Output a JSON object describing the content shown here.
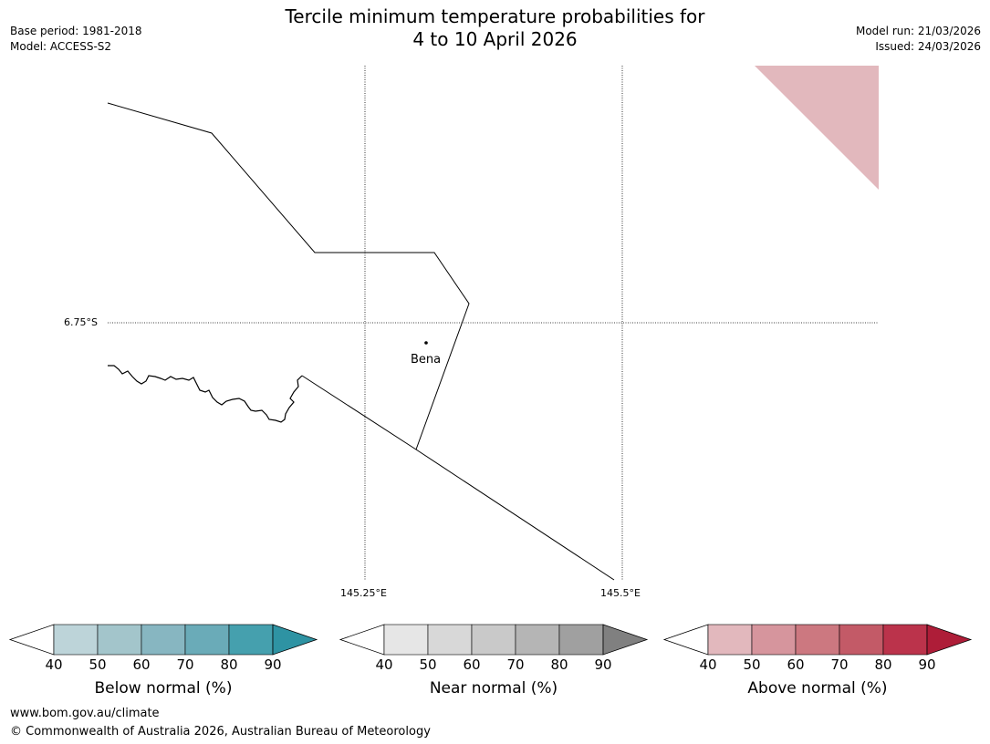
{
  "title": {
    "line1": "Tercile minimum temperature probabilities for",
    "line2": "4 to 10 April 2026"
  },
  "meta_left": {
    "base_period": "Base period: 1981-2018",
    "model": "Model: ACCESS-S2"
  },
  "meta_right": {
    "model_run": "Model run: 21/03/2026",
    "issued": "Issued: 24/03/2026"
  },
  "map": {
    "lat_label": "6.75°S",
    "lon_labels": [
      "145.25°E",
      "145.5°E"
    ],
    "place": "Bena",
    "shading_color": "#e2b8bd"
  },
  "colorbars": [
    {
      "name": "below",
      "title": "Below normal (%)",
      "ticks": [
        "40",
        "50",
        "60",
        "70",
        "80",
        "90"
      ],
      "colors": [
        "#ffffff",
        "#bdd4d9",
        "#a3c5cb",
        "#87b6c1",
        "#6aabb8",
        "#45a0ae",
        "#2e93a3"
      ]
    },
    {
      "name": "near",
      "title": "Near normal (%)",
      "ticks": [
        "40",
        "50",
        "60",
        "70",
        "80",
        "90"
      ],
      "colors": [
        "#ffffff",
        "#e6e6e6",
        "#d8d8d8",
        "#c9c9c9",
        "#b5b5b5",
        "#a0a0a0",
        "#808080"
      ]
    },
    {
      "name": "above",
      "title": "Above normal (%)",
      "ticks": [
        "40",
        "50",
        "60",
        "70",
        "80",
        "90"
      ],
      "colors": [
        "#ffffff",
        "#e2b8bd",
        "#d6959d",
        "#cc7880",
        "#c35a67",
        "#bb334b",
        "#ae1d38"
      ]
    }
  ],
  "footer": {
    "url": "www.bom.gov.au/climate",
    "copyright": "© Commonwealth of Australia 2026, Australian Bureau of Meteorology"
  }
}
